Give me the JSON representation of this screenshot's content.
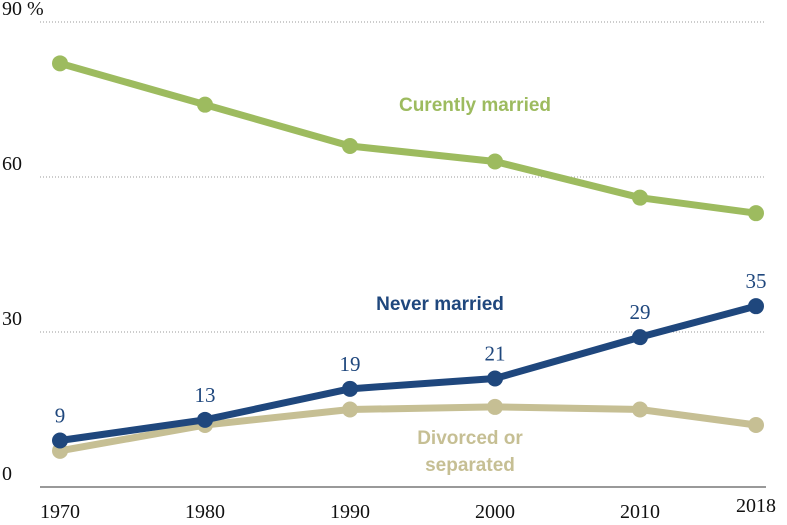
{
  "chart_data": {
    "type": "line",
    "x": [
      1970,
      1980,
      1990,
      2000,
      2010,
      2018
    ],
    "xlim": [
      1970,
      2018
    ],
    "xticks": [
      1970,
      1980,
      1990,
      2000,
      2010,
      2018
    ],
    "ylim": [
      0,
      90
    ],
    "yticks": [
      0,
      30,
      60,
      {
        "value": 90,
        "label": "90 %"
      }
    ],
    "grid": true,
    "series": [
      {
        "label": [
          "Curently married"
        ],
        "color": "#9dbb5f",
        "values": [
          82,
          74,
          66,
          63,
          56,
          53
        ]
      },
      {
        "label": [
          "Never married"
        ],
        "color": "#1f477d",
        "values": [
          9,
          13,
          19,
          21,
          29,
          35
        ],
        "value_labels_shown": true
      },
      {
        "label": [
          "Divorced or",
          "separated"
        ],
        "color": "#c6bf94",
        "values": [
          7,
          12,
          15,
          15.5,
          15,
          12
        ]
      }
    ]
  }
}
